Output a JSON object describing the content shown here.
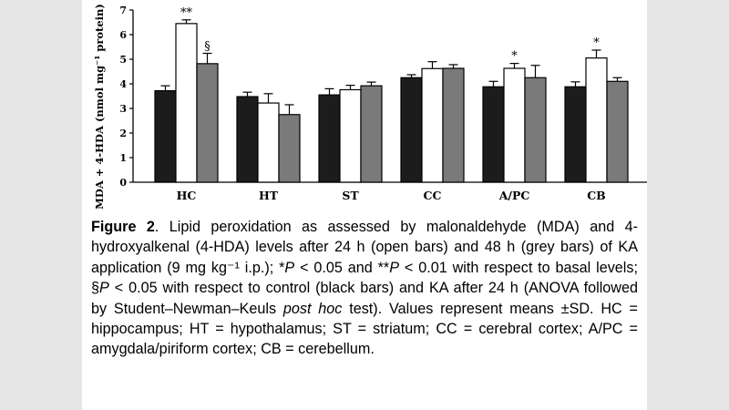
{
  "chart_data": {
    "type": "bar",
    "ylabel": "MDA + 4-HDA (nmol mg⁻¹ protein)",
    "ylim": [
      0,
      7
    ],
    "yticks": [
      0,
      1,
      2,
      3,
      4,
      5,
      6,
      7
    ],
    "categories": [
      "HC",
      "HT",
      "ST",
      "CC",
      "A/PC",
      "CB"
    ],
    "series": [
      {
        "color": "#1c1c1c",
        "values": [
          3.72,
          3.48,
          3.55,
          4.25,
          3.88,
          3.88
        ],
        "errors": [
          0.2,
          0.18,
          0.25,
          0.12,
          0.22,
          0.2
        ]
      },
      {
        "color": "#ffffff",
        "values": [
          6.45,
          3.22,
          3.76,
          4.62,
          4.63,
          5.05
        ],
        "errors": [
          0.15,
          0.38,
          0.18,
          0.28,
          0.2,
          0.32
        ]
      },
      {
        "color": "#7a7a7a",
        "values": [
          4.82,
          2.75,
          3.92,
          4.63,
          4.25,
          4.1
        ],
        "errors": [
          0.42,
          0.4,
          0.15,
          0.15,
          0.5,
          0.15
        ]
      }
    ],
    "annotations": [
      {
        "category": "HC",
        "series": 1,
        "text": "**"
      },
      {
        "category": "HC",
        "series": 2,
        "text": "§"
      },
      {
        "category": "A/PC",
        "series": 1,
        "text": "*"
      },
      {
        "category": "CB",
        "series": 1,
        "text": "*"
      }
    ]
  },
  "caption": {
    "label": "Figure 2",
    "text": [
      ". Lipid peroxidation as assessed by malonaldehyde (MDA) and 4-hydroxyalkenal (4-HDA) levels after 24 h (open bars) and 48 h (grey bars) of KA application (9 mg kg⁻¹ i.p.); *",
      "P",
      " < 0.05 and **",
      "P",
      " < 0.01 with respect to basal levels; §",
      "P",
      " < 0.05 with respect to control (black bars) and KA after 24 h (ANOVA followed by Student–Newman–Keuls ",
      "post hoc",
      " test). Values represent means ±SD. HC = hippocampus; HT = hypothalamus; ST = striatum; CC = cerebral cortex; A/PC = amygdala/piriform cortex; CB = cerebellum."
    ]
  }
}
